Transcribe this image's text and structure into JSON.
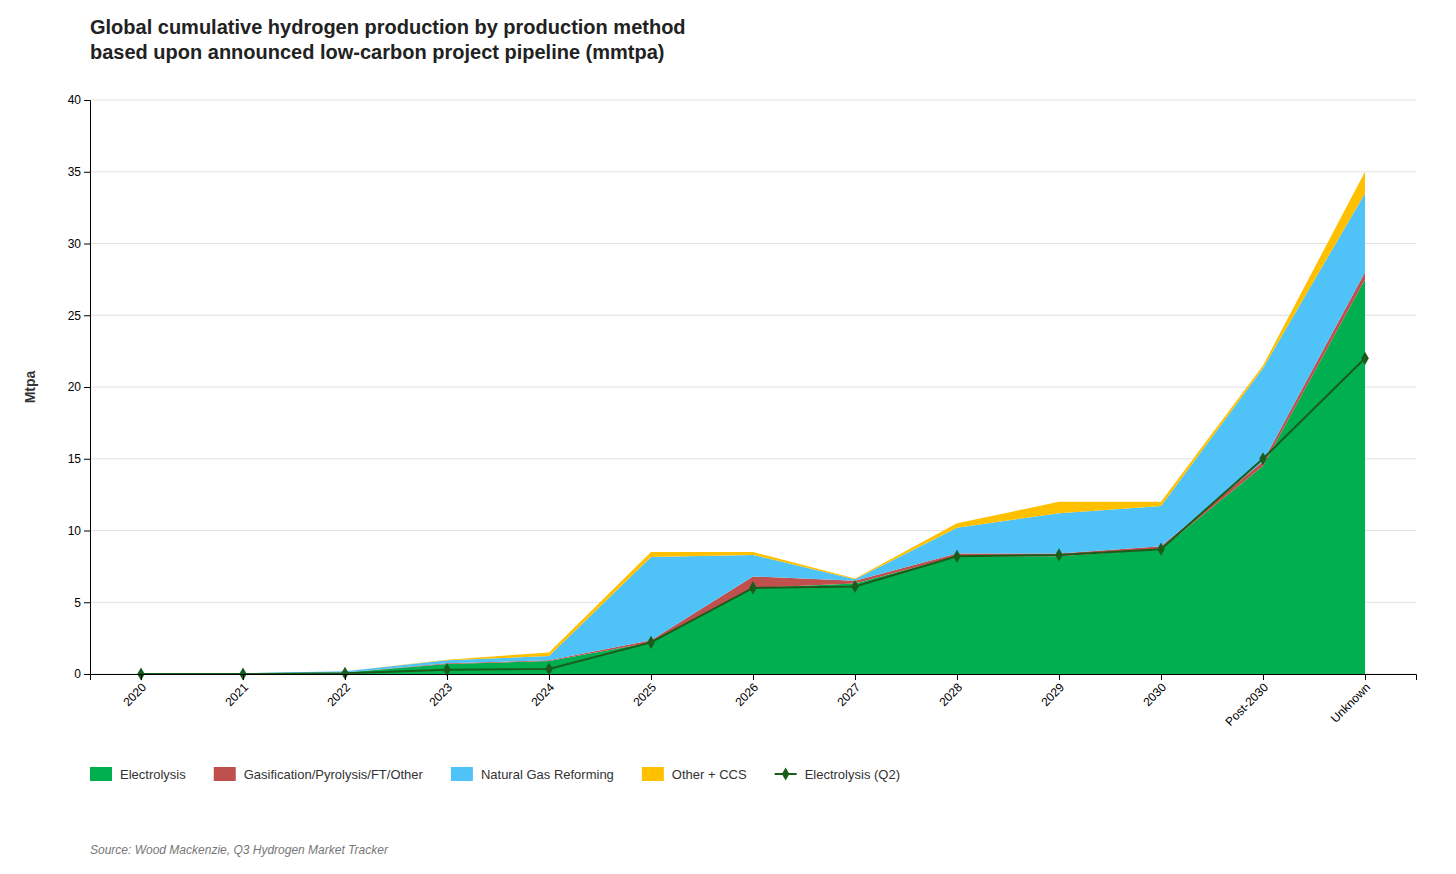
{
  "chart_data": {
    "type": "area",
    "stacked": true,
    "title": "Global cumulative hydrogen production by production method\nbased upon announced low-carbon project pipeline (mmtpa)",
    "ylabel": "Mtpa",
    "annotations": [
      "Source: Wood Mackenzie, Q3 Hydrogen Market Tracker"
    ],
    "categories": [
      "2020",
      "2021",
      "2022",
      "2023",
      "2024",
      "2025",
      "2026",
      "2027",
      "2028",
      "2029",
      "2030",
      "Post-2030",
      "Unknown"
    ],
    "series": [
      {
        "name": "Electrolysis",
        "type": "area",
        "color": "#00b050",
        "values": [
          0.05,
          0.05,
          0.1,
          0.7,
          0.9,
          2.2,
          6.0,
          6.3,
          8.2,
          8.2,
          8.7,
          14.5,
          27.5
        ]
      },
      {
        "name": "Gasification/Pyrolysis/FT/Other",
        "type": "area",
        "color": "#c0504d",
        "values": [
          0.0,
          0.0,
          0.0,
          0.05,
          0.05,
          0.15,
          0.8,
          0.2,
          0.2,
          0.2,
          0.2,
          0.3,
          0.5
        ]
      },
      {
        "name": "Natural Gas Reforming",
        "type": "area",
        "color": "#4fc3f7",
        "values": [
          0.0,
          0.0,
          0.1,
          0.2,
          0.3,
          5.8,
          1.5,
          0.1,
          1.8,
          2.8,
          2.8,
          6.5,
          5.5
        ]
      },
      {
        "name": "Other + CCS",
        "type": "area",
        "color": "#ffc000",
        "values": [
          0.0,
          0.0,
          0.0,
          0.05,
          0.25,
          0.35,
          0.2,
          0.05,
          0.3,
          0.8,
          0.3,
          0.2,
          1.5
        ]
      },
      {
        "name": "Electrolysis (Q2)",
        "type": "line",
        "color": "#1a5c1a",
        "marker": "diamond",
        "values": [
          0.0,
          0.0,
          0.05,
          0.3,
          0.35,
          2.2,
          6.0,
          6.1,
          8.2,
          8.3,
          8.7,
          15.0,
          22.0
        ]
      }
    ],
    "ylim": [
      0,
      40
    ],
    "yticks": [
      0,
      5,
      10,
      15,
      20,
      25,
      30,
      35,
      40
    ],
    "grid": true,
    "legend": "bottom"
  }
}
